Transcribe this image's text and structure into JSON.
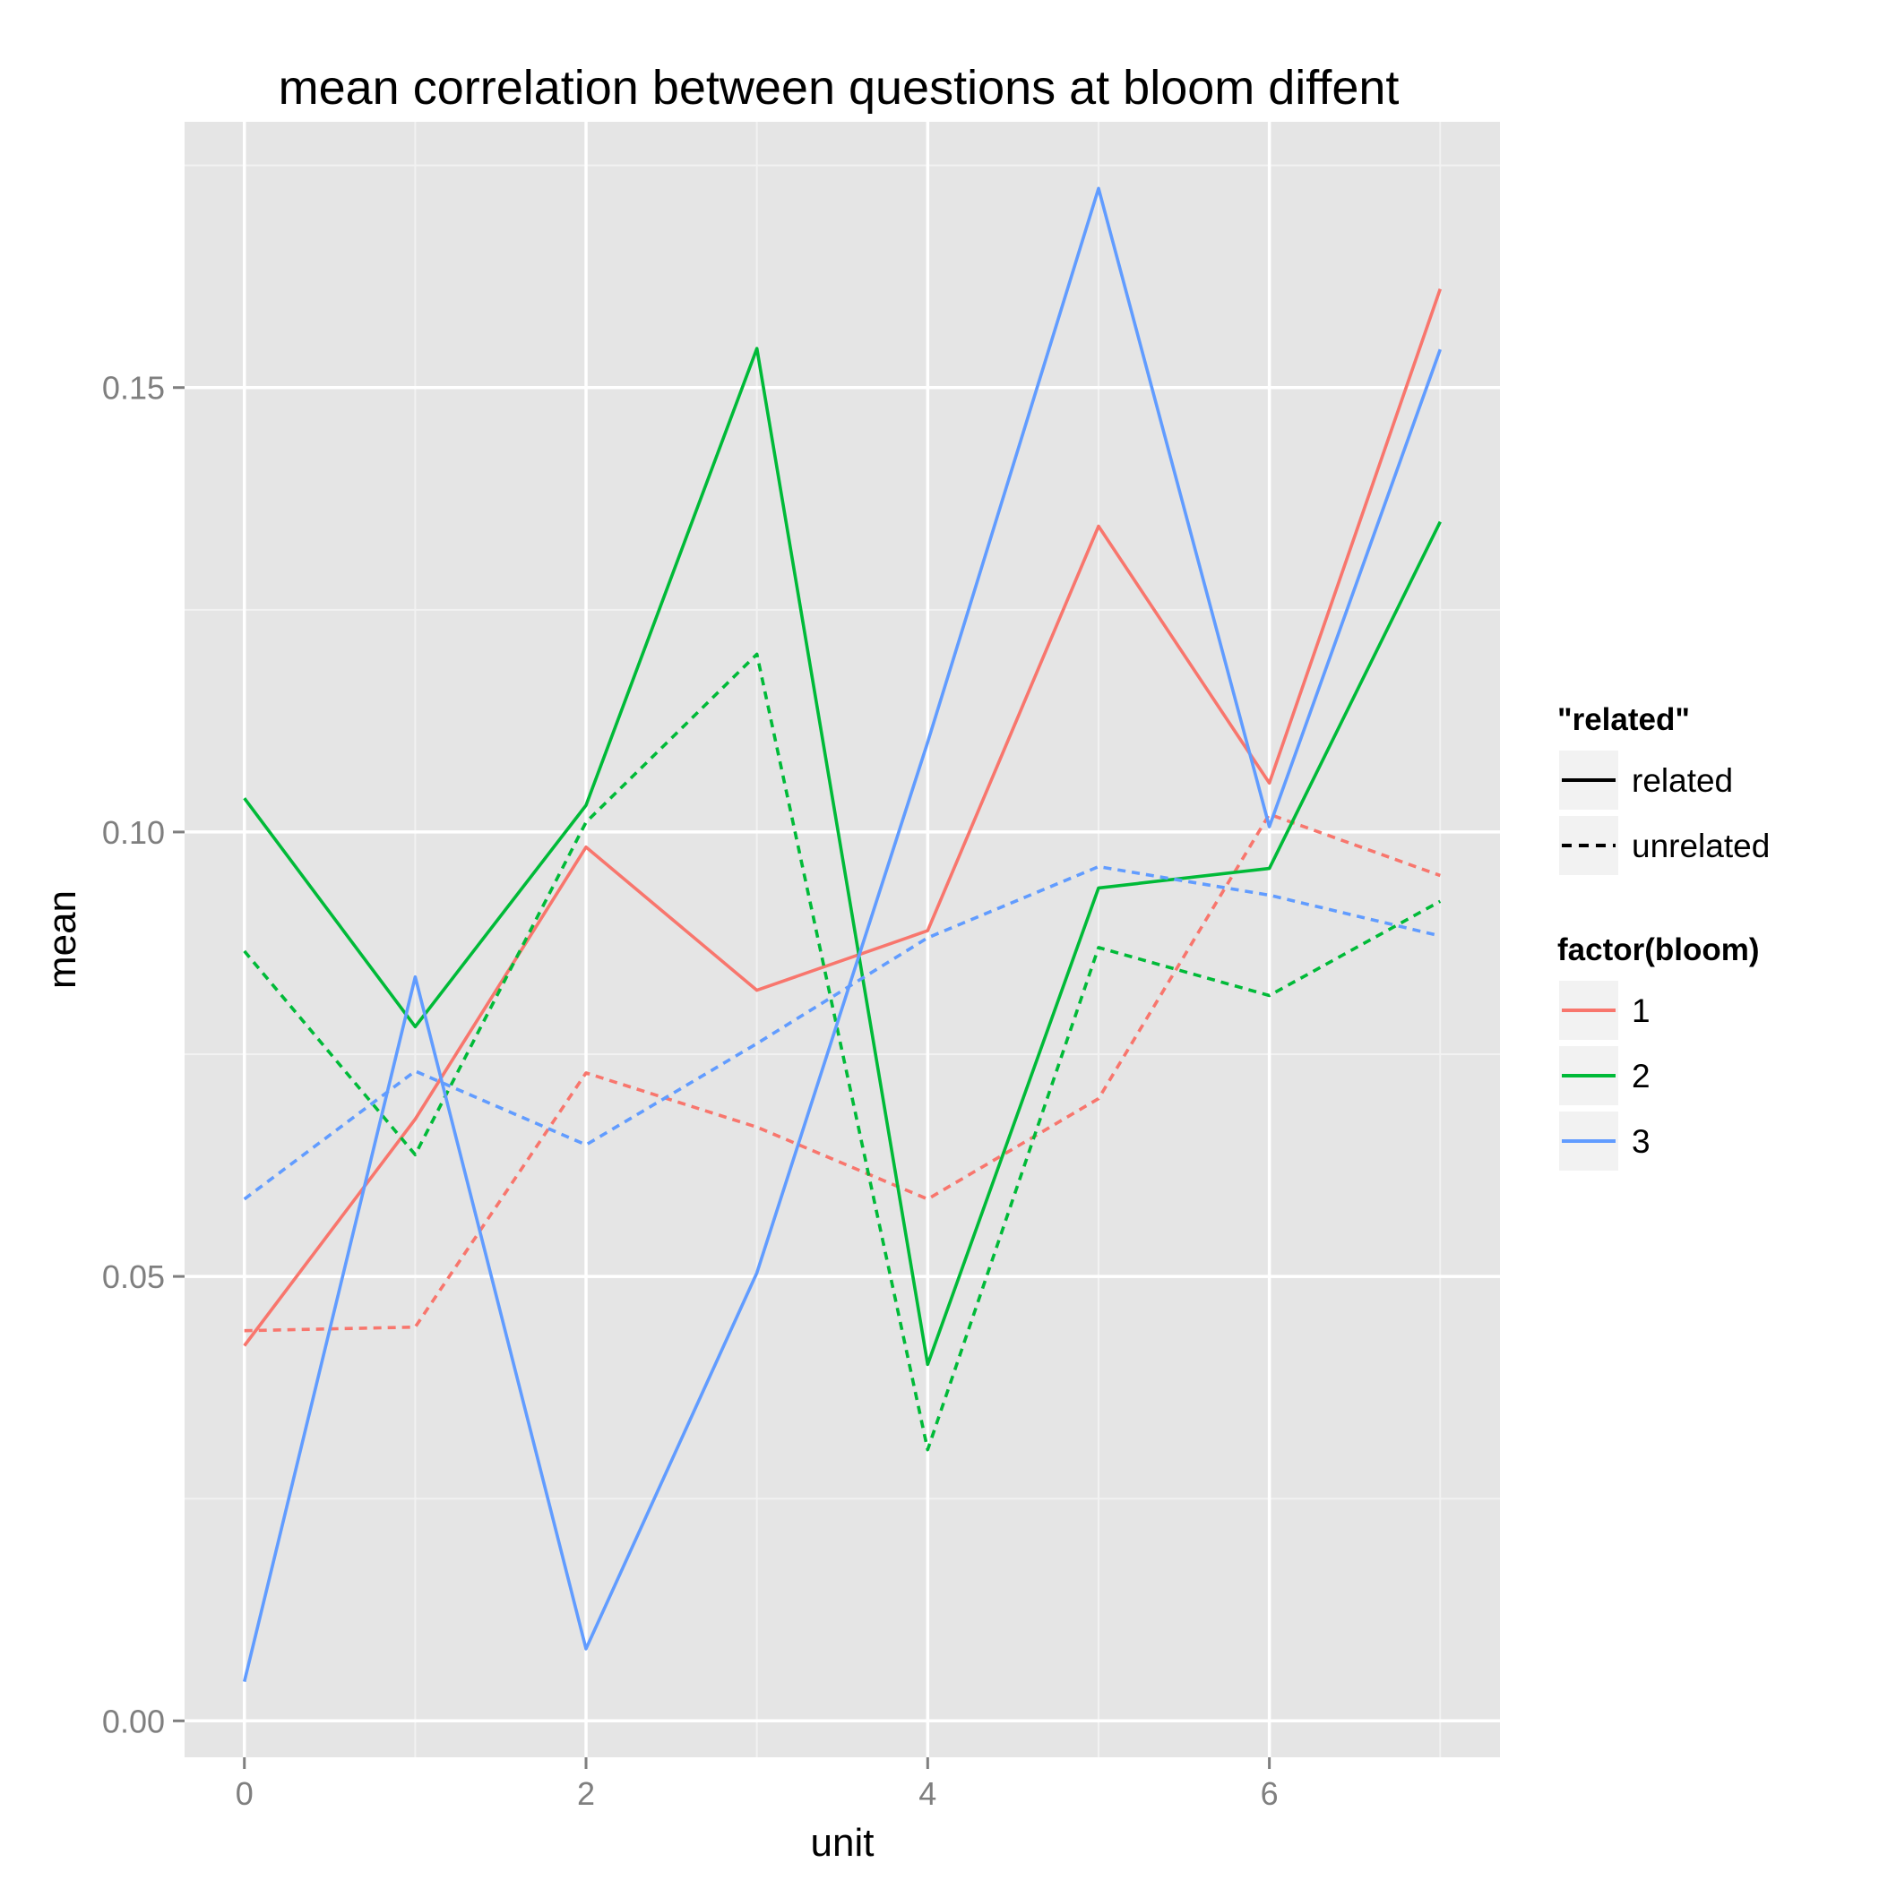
{
  "chart_data": {
    "type": "line",
    "title": "mean correlation between questions at bloom diffent",
    "xlabel": "unit",
    "ylabel": "mean",
    "xlim": [
      -0.35,
      7.35
    ],
    "ylim": [
      -0.0041,
      0.1799
    ],
    "x_ticks": [
      {
        "value": 0,
        "label": "0"
      },
      {
        "value": 2,
        "label": "2"
      },
      {
        "value": 4,
        "label": "4"
      },
      {
        "value": 6,
        "label": "6"
      }
    ],
    "x_minor": [
      1,
      3,
      5,
      7
    ],
    "y_ticks": [
      {
        "value": 0.0,
        "label": "0.00"
      },
      {
        "value": 0.05,
        "label": "0.05"
      },
      {
        "value": 0.1,
        "label": "0.10"
      },
      {
        "value": 0.15,
        "label": "0.15"
      }
    ],
    "y_minor": [
      0.025,
      0.075,
      0.125,
      0.175
    ],
    "grid": true,
    "legend_position": "right",
    "x": [
      0,
      1,
      2,
      3,
      4,
      5,
      6,
      7
    ],
    "series": [
      {
        "bloom": "1",
        "related": "related",
        "color": "#F8766D",
        "dash": "solid",
        "values": [
          0.0422,
          0.0677,
          0.0983,
          0.0822,
          0.0889,
          0.1344,
          0.1055,
          0.1611
        ]
      },
      {
        "bloom": "1",
        "related": "unrelated",
        "color": "#F8766D",
        "dash": "dashed",
        "values": [
          0.0439,
          0.0443,
          0.0729,
          0.0668,
          0.0587,
          0.07,
          0.102,
          0.0951
        ]
      },
      {
        "bloom": "2",
        "related": "related",
        "color": "#00BA38",
        "dash": "solid",
        "values": [
          0.1038,
          0.0781,
          0.103,
          0.1544,
          0.0401,
          0.0937,
          0.0959,
          0.1349
        ]
      },
      {
        "bloom": "2",
        "related": "unrelated",
        "color": "#00BA38",
        "dash": "dashed",
        "values": [
          0.0866,
          0.0637,
          0.1011,
          0.12,
          0.0305,
          0.087,
          0.0816,
          0.0922
        ]
      },
      {
        "bloom": "3",
        "related": "related",
        "color": "#619CFF",
        "dash": "solid",
        "values": [
          0.0044,
          0.0837,
          0.0081,
          0.0504,
          0.1101,
          0.1724,
          0.1006,
          0.1543
        ]
      },
      {
        "bloom": "3",
        "related": "unrelated",
        "color": "#619CFF",
        "dash": "dashed",
        "values": [
          0.0587,
          0.0731,
          0.0648,
          0.0762,
          0.0881,
          0.0961,
          0.0929,
          0.0883
        ]
      }
    ],
    "legend": {
      "linetype": {
        "title": "\"related\"",
        "items": [
          {
            "label": "related",
            "dash": "solid"
          },
          {
            "label": "unrelated",
            "dash": "dashed"
          }
        ]
      },
      "color": {
        "title": "factor(bloom)",
        "items": [
          {
            "label": "1",
            "color": "#F8766D"
          },
          {
            "label": "2",
            "color": "#00BA38"
          },
          {
            "label": "3",
            "color": "#619CFF"
          }
        ]
      }
    }
  }
}
